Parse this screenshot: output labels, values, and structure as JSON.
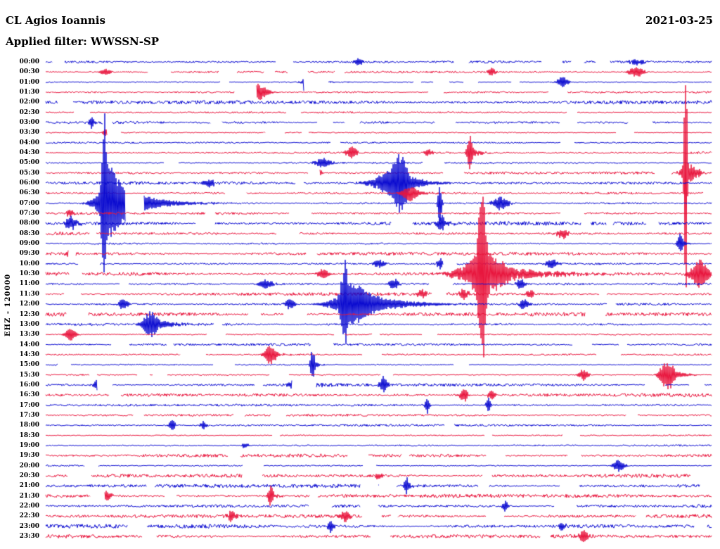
{
  "header": {
    "station": "CL Agios Ioannis",
    "date": "2021-03-25",
    "filter_label": "Applied filter: WWSSN-SP"
  },
  "axis": {
    "left_label": "EHZ - 120000"
  },
  "chart_data": {
    "type": "helicorder-seismogram",
    "title": "CL Agios Ioannis",
    "date": "2021-03-25",
    "channel_scale_label": "EHZ - 120000",
    "filter": "WWSSN-SP",
    "row_interval_minutes": 30,
    "row_labels": [
      "00:00",
      "00:30",
      "01:00",
      "01:30",
      "02:00",
      "02:30",
      "03:00",
      "03:30",
      "04:00",
      "04:30",
      "05:00",
      "05:30",
      "06:00",
      "06:30",
      "07:00",
      "07:30",
      "08:00",
      "08:30",
      "09:00",
      "09:30",
      "10:00",
      "10:30",
      "11:00",
      "11:30",
      "12:00",
      "12:30",
      "13:00",
      "13:30",
      "14:00",
      "14:30",
      "15:00",
      "15:30",
      "16:00",
      "16:30",
      "17:00",
      "17:30",
      "18:00",
      "18:30",
      "19:00",
      "19:30",
      "20:00",
      "20:30",
      "21:00",
      "21:30",
      "22:00",
      "22:30",
      "23:00",
      "23:30"
    ],
    "colors": {
      "even_rows": "#0a0ad0",
      "odd_rows": "#e8143c"
    },
    "noise": {
      "base_amp": 1.3,
      "gap_probability": 0.0035,
      "seed": 20210325
    },
    "events": [
      {
        "row": 0,
        "x": 0.47,
        "amp": 4,
        "w": 6,
        "tail": 0
      },
      {
        "row": 0,
        "x": 0.887,
        "amp": 4,
        "w": 8,
        "tail": 0
      },
      {
        "row": 1,
        "x": 0.09,
        "amp": 5,
        "w": 5,
        "tail": 0
      },
      {
        "row": 1,
        "x": 0.67,
        "amp": 6,
        "w": 4,
        "tail": 0
      },
      {
        "row": 1,
        "x": 0.887,
        "amp": 7,
        "w": 8,
        "tail": 0
      },
      {
        "row": 2,
        "x": 0.391,
        "amp": 85,
        "w": 1.6,
        "tail": 0
      },
      {
        "row": 2,
        "x": 0.402,
        "amp": 10,
        "w": 9,
        "tail": 18
      },
      {
        "row": 2,
        "x": 0.776,
        "amp": 7,
        "w": 6,
        "tail": 0
      },
      {
        "row": 3,
        "x": 0.317,
        "amp": 13,
        "w": 11,
        "tail": 16
      },
      {
        "row": 5,
        "x": 0.373,
        "amp": 5,
        "w": 4,
        "tail": 0
      },
      {
        "row": 6,
        "x": 0.069,
        "amp": 9,
        "w": 3,
        "tail": 8
      },
      {
        "row": 7,
        "x": 0.09,
        "amp": 5,
        "w": 4,
        "tail": 0
      },
      {
        "row": 9,
        "x": 0.459,
        "amp": 9,
        "w": 6,
        "tail": 0
      },
      {
        "row": 9,
        "x": 0.575,
        "amp": 5,
        "w": 4,
        "tail": 0
      },
      {
        "row": 9,
        "x": 0.637,
        "amp": 26,
        "w": 3,
        "tail": 10
      },
      {
        "row": 10,
        "x": 0.417,
        "amp": 7,
        "w": 8,
        "tail": 0
      },
      {
        "row": 11,
        "x": 0.41,
        "amp": 5,
        "w": 4,
        "tail": 0
      },
      {
        "row": 11,
        "x": 0.961,
        "amp": 185,
        "w": 1.6,
        "tail": 0
      },
      {
        "row": 11,
        "x": 0.968,
        "amp": 12,
        "w": 10,
        "tail": 15
      },
      {
        "row": 12,
        "x": 0.245,
        "amp": 6,
        "w": 6,
        "tail": 0
      },
      {
        "row": 12,
        "x": 0.515,
        "amp": 14,
        "w": 18,
        "tail": 0
      },
      {
        "row": 12,
        "x": 0.533,
        "amp": 35,
        "w": 9,
        "tail": 26
      },
      {
        "row": 13,
        "x": 0.547,
        "amp": 12,
        "w": 8,
        "tail": 20
      },
      {
        "row": 14,
        "x": 0.088,
        "amp": 115,
        "w": 3,
        "tail": 30
      },
      {
        "row": 14,
        "x": 0.095,
        "amp": 20,
        "w": 16,
        "tail": 60
      },
      {
        "row": 14,
        "x": 0.592,
        "amp": 30,
        "w": 2,
        "tail": 0
      },
      {
        "row": 14,
        "x": 0.683,
        "amp": 10,
        "w": 8,
        "tail": 0
      },
      {
        "row": 15,
        "x": 0.037,
        "amp": 6,
        "w": 4,
        "tail": 0
      },
      {
        "row": 16,
        "x": 0.037,
        "amp": 10,
        "w": 6,
        "tail": 12
      },
      {
        "row": 16,
        "x": 0.539,
        "amp": 8,
        "w": 5,
        "tail": 0
      },
      {
        "row": 16,
        "x": 0.594,
        "amp": 12,
        "w": 4,
        "tail": 10
      },
      {
        "row": 17,
        "x": 0.776,
        "amp": 7,
        "w": 6,
        "tail": 0
      },
      {
        "row": 18,
        "x": 0.953,
        "amp": 14,
        "w": 3,
        "tail": 8
      },
      {
        "row": 19,
        "x": 0.037,
        "amp": 7,
        "w": 5,
        "tail": 0
      },
      {
        "row": 20,
        "x": 0.501,
        "amp": 6,
        "w": 6,
        "tail": 0
      },
      {
        "row": 20,
        "x": 0.592,
        "amp": 9,
        "w": 3,
        "tail": 0
      },
      {
        "row": 20,
        "x": 0.76,
        "amp": 7,
        "w": 6,
        "tail": 0
      },
      {
        "row": 21,
        "x": 0.417,
        "amp": 7,
        "w": 6,
        "tail": 0
      },
      {
        "row": 21,
        "x": 0.655,
        "amp": 135,
        "w": 4,
        "tail": 0
      },
      {
        "row": 21,
        "x": 0.662,
        "amp": 28,
        "w": 26,
        "tail": 70
      },
      {
        "row": 21,
        "x": 0.982,
        "amp": 22,
        "w": 9,
        "tail": 12
      },
      {
        "row": 22,
        "x": 0.33,
        "amp": 6,
        "w": 8,
        "tail": 0
      },
      {
        "row": 22,
        "x": 0.523,
        "amp": 8,
        "w": 5,
        "tail": 0
      },
      {
        "row": 22,
        "x": 0.713,
        "amp": 9,
        "w": 4,
        "tail": 0
      },
      {
        "row": 23,
        "x": 0.565,
        "amp": 6,
        "w": 5,
        "tail": 0
      },
      {
        "row": 23,
        "x": 0.628,
        "amp": 8,
        "w": 5,
        "tail": 0
      },
      {
        "row": 23,
        "x": 0.728,
        "amp": 7,
        "w": 4,
        "tail": 0
      },
      {
        "row": 24,
        "x": 0.116,
        "amp": 8,
        "w": 5,
        "tail": 0
      },
      {
        "row": 24,
        "x": 0.366,
        "amp": 8,
        "w": 5,
        "tail": 0
      },
      {
        "row": 24,
        "x": 0.449,
        "amp": 55,
        "w": 4,
        "tail": 40
      },
      {
        "row": 24,
        "x": 0.46,
        "amp": 14,
        "w": 24,
        "tail": 70
      },
      {
        "row": 24,
        "x": 0.718,
        "amp": 9,
        "w": 4,
        "tail": 0
      },
      {
        "row": 26,
        "x": 0.158,
        "amp": 20,
        "w": 8,
        "tail": 28
      },
      {
        "row": 27,
        "x": 0.037,
        "amp": 9,
        "w": 6,
        "tail": 0
      },
      {
        "row": 29,
        "x": 0.338,
        "amp": 14,
        "w": 6,
        "tail": 10
      },
      {
        "row": 30,
        "x": 0.401,
        "amp": 22,
        "w": 2.5,
        "tail": 6
      },
      {
        "row": 31,
        "x": 0.808,
        "amp": 8,
        "w": 5,
        "tail": 0
      },
      {
        "row": 31,
        "x": 0.934,
        "amp": 22,
        "w": 8,
        "tail": 18
      },
      {
        "row": 32,
        "x": 0.079,
        "amp": 8,
        "w": 5,
        "tail": 0
      },
      {
        "row": 32,
        "x": 0.385,
        "amp": 16,
        "w": 10,
        "tail": 20
      },
      {
        "row": 32,
        "x": 0.507,
        "amp": 12,
        "w": 4,
        "tail": 0
      },
      {
        "row": 33,
        "x": 0.628,
        "amp": 10,
        "w": 4,
        "tail": 0
      },
      {
        "row": 33,
        "x": 0.67,
        "amp": 7,
        "w": 4,
        "tail": 0
      },
      {
        "row": 34,
        "x": 0.573,
        "amp": 12,
        "w": 2.5,
        "tail": 0
      },
      {
        "row": 34,
        "x": 0.665,
        "amp": 10,
        "w": 2.5,
        "tail": 0
      },
      {
        "row": 36,
        "x": 0.19,
        "amp": 9,
        "w": 3,
        "tail": 0
      },
      {
        "row": 36,
        "x": 0.237,
        "amp": 6,
        "w": 3,
        "tail": 0
      },
      {
        "row": 38,
        "x": 0.3,
        "amp": 4,
        "w": 4,
        "tail": 0
      },
      {
        "row": 40,
        "x": 0.861,
        "amp": 9,
        "w": 6,
        "tail": 0
      },
      {
        "row": 41,
        "x": 0.5,
        "amp": 5,
        "w": 4,
        "tail": 0
      },
      {
        "row": 42,
        "x": 0.542,
        "amp": 16,
        "w": 2,
        "tail": 5
      },
      {
        "row": 43,
        "x": 0.088,
        "amp": 10,
        "w": 6,
        "tail": 0
      },
      {
        "row": 43,
        "x": 0.338,
        "amp": 15,
        "w": 3,
        "tail": 8
      },
      {
        "row": 44,
        "x": 0.69,
        "amp": 8,
        "w": 3,
        "tail": 0
      },
      {
        "row": 45,
        "x": 0.28,
        "amp": 8,
        "w": 5,
        "tail": 0
      },
      {
        "row": 45,
        "x": 0.449,
        "amp": 9,
        "w": 6,
        "tail": 0
      },
      {
        "row": 46,
        "x": 0.428,
        "amp": 10,
        "w": 3,
        "tail": 0
      },
      {
        "row": 46,
        "x": 0.776,
        "amp": 6,
        "w": 4,
        "tail": 0
      },
      {
        "row": 47,
        "x": 0.808,
        "amp": 8,
        "w": 5,
        "tail": 0
      }
    ]
  }
}
